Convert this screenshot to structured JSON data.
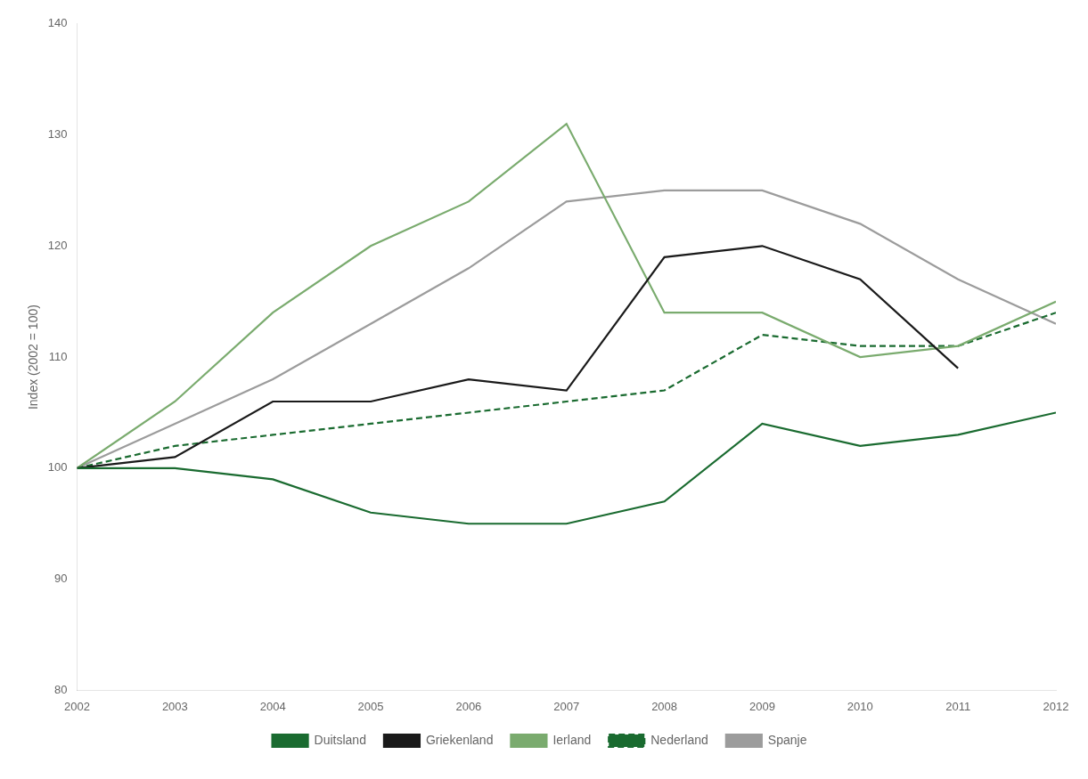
{
  "chart_data": {
    "type": "line",
    "x": [
      2002,
      2003,
      2004,
      2005,
      2006,
      2007,
      2008,
      2009,
      2010,
      2011,
      2012
    ],
    "series": [
      {
        "name": "Duitsland",
        "color": "#1a6b30",
        "line_style": "solid",
        "values": [
          100,
          100,
          99,
          96,
          95,
          95,
          97,
          104,
          102,
          103,
          105
        ]
      },
      {
        "name": "Griekenland",
        "color": "#1a1a1a",
        "line_style": "solid",
        "values": [
          100,
          101,
          106,
          106,
          108,
          107,
          119,
          120,
          117,
          109,
          null
        ]
      },
      {
        "name": "Ierland",
        "color": "#7aab6e",
        "line_style": "solid",
        "values": [
          100,
          106,
          114,
          120,
          124,
          131,
          114,
          114,
          110,
          111,
          115
        ]
      },
      {
        "name": "Nederland",
        "color": "#1a6b30",
        "line_style": "dashed",
        "values": [
          100,
          102,
          103,
          104,
          105,
          106,
          107,
          112,
          111,
          111,
          114
        ]
      },
      {
        "name": "Spanje",
        "color": "#9c9c9c",
        "line_style": "solid",
        "values": [
          100,
          104,
          108,
          113,
          118,
          124,
          125,
          125,
          122,
          117,
          113
        ]
      }
    ],
    "xlim": [
      2002,
      2012
    ],
    "xticks": [
      2002,
      2003,
      2004,
      2005,
      2006,
      2007,
      2008,
      2009,
      2010,
      2011,
      2012
    ],
    "ylim": [
      80,
      140
    ],
    "yticks": [
      80,
      90,
      100,
      110,
      120,
      130,
      140
    ],
    "ylabel": "Index (2002 = 100)",
    "grid": false,
    "legend": "bottom"
  }
}
